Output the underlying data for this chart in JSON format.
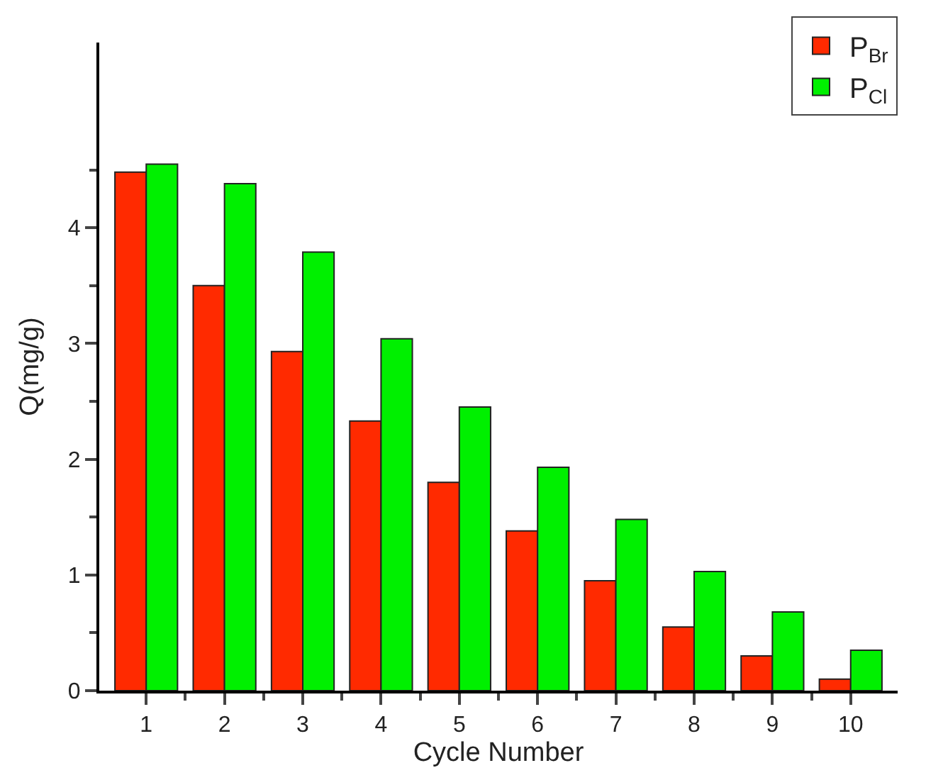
{
  "chart_data": {
    "type": "bar",
    "xlabel": "Cycle Number",
    "ylabel": "Q(mg/g)",
    "categories": [
      "1",
      "2",
      "3",
      "4",
      "5",
      "6",
      "7",
      "8",
      "9",
      "10"
    ],
    "series": [
      {
        "name": "P$_{Br}$",
        "color": "#ff2a00",
        "values": [
          4.48,
          3.5,
          2.93,
          2.33,
          1.8,
          1.38,
          0.95,
          0.55,
          0.3,
          0.1
        ]
      },
      {
        "name": "P$_{Cl}$",
        "color": "#00f000",
        "values": [
          4.55,
          4.38,
          3.79,
          3.04,
          2.45,
          1.93,
          1.48,
          1.03,
          0.68,
          0.35
        ]
      }
    ],
    "ylim": [
      0,
      5.6
    ],
    "yticks": [
      0,
      1,
      2,
      3,
      4
    ],
    "legend": "top right"
  }
}
